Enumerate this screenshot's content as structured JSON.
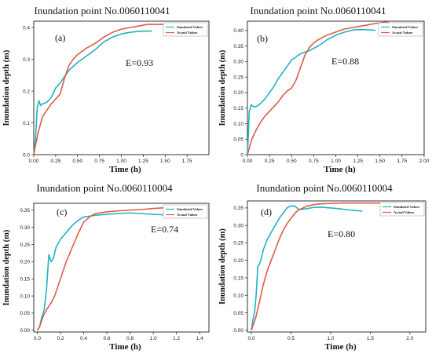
{
  "chart_data": [
    {
      "type": "line",
      "panel_label": "(a)",
      "title": "Inundation point  No.0060110041",
      "xlabel": "Time (h)",
      "ylabel": "Inundation depth (m)",
      "xlim": [
        0,
        2.0
      ],
      "ylim": [
        0,
        0.42
      ],
      "xticks": [
        "0.00",
        "0.25",
        "0.50",
        "0.75",
        "1.00",
        "1.25",
        "1.50",
        "1.75"
      ],
      "xtick_values": [
        0,
        0.25,
        0.5,
        0.75,
        1.0,
        1.25,
        1.5,
        1.75
      ],
      "yticks": [
        "0.0",
        "0.1",
        "0.2",
        "0.3",
        "0.4"
      ],
      "ytick_values": [
        0,
        0.1,
        0.2,
        0.3,
        0.4
      ],
      "annotation": "E=0.93",
      "legend": "top-right",
      "series": [
        {
          "name": "Simulated Values",
          "color": "#1fb3c2",
          "x": [
            0,
            0.02,
            0.04,
            0.05,
            0.06,
            0.07,
            0.08,
            0.1,
            0.15,
            0.2,
            0.25,
            0.3,
            0.35,
            0.4,
            0.5,
            0.6,
            0.7,
            0.8,
            0.9,
            1.0,
            1.1,
            1.2,
            1.3,
            1.35
          ],
          "y": [
            0.0,
            0.05,
            0.15,
            0.16,
            0.17,
            0.16,
            0.155,
            0.16,
            0.165,
            0.18,
            0.21,
            0.225,
            0.245,
            0.265,
            0.29,
            0.31,
            0.33,
            0.355,
            0.37,
            0.38,
            0.385,
            0.388,
            0.389,
            0.389
          ]
        },
        {
          "name": "Actual Values",
          "color": "#e05a4a",
          "x": [
            0,
            0.02,
            0.05,
            0.08,
            0.1,
            0.15,
            0.2,
            0.25,
            0.3,
            0.35,
            0.4,
            0.45,
            0.5,
            0.6,
            0.7,
            0.8,
            0.9,
            1.0,
            1.1,
            1.2,
            1.3,
            1.4,
            1.5
          ],
          "y": [
            0.0,
            0.03,
            0.07,
            0.1,
            0.12,
            0.14,
            0.16,
            0.175,
            0.19,
            0.24,
            0.28,
            0.3,
            0.315,
            0.335,
            0.35,
            0.37,
            0.385,
            0.395,
            0.4,
            0.405,
            0.41,
            0.41,
            0.41
          ]
        }
      ]
    },
    {
      "type": "line",
      "panel_label": "(b)",
      "title": "Inundation point  No.0060110041",
      "xlabel": "Time (h)",
      "ylabel": "Inundation depth (m)",
      "xlim": [
        0,
        2.0
      ],
      "ylim": [
        0,
        0.43
      ],
      "xticks": [
        "0.00",
        "0.25",
        "0.50",
        "0.75",
        "1.00",
        "1.25",
        "1.50",
        "1.75",
        "2.00"
      ],
      "xtick_values": [
        0,
        0.25,
        0.5,
        0.75,
        1.0,
        1.25,
        1.5,
        1.75,
        2.0
      ],
      "yticks": [
        "0",
        "0.05",
        "0.10",
        "0.15",
        "0.20",
        "0.25",
        "0.30",
        "0.35",
        "0.40"
      ],
      "ytick_values": [
        0,
        0.05,
        0.1,
        0.15,
        0.2,
        0.25,
        0.3,
        0.35,
        0.4
      ],
      "annotation": "E=0.88",
      "legend": "top-right",
      "series": [
        {
          "name": "Simulated Values",
          "color": "#1fb3c2",
          "x": [
            0,
            0.01,
            0.02,
            0.03,
            0.04,
            0.05,
            0.06,
            0.08,
            0.1,
            0.15,
            0.2,
            0.25,
            0.3,
            0.35,
            0.4,
            0.45,
            0.5,
            0.55,
            0.6,
            0.7,
            0.8,
            0.9,
            1.0,
            1.1,
            1.2,
            1.3,
            1.4,
            1.45
          ],
          "y": [
            0.0,
            0.06,
            0.14,
            0.145,
            0.16,
            0.16,
            0.155,
            0.155,
            0.155,
            0.165,
            0.18,
            0.2,
            0.22,
            0.245,
            0.265,
            0.285,
            0.305,
            0.315,
            0.325,
            0.335,
            0.35,
            0.37,
            0.385,
            0.395,
            0.402,
            0.403,
            0.402,
            0.4
          ]
        },
        {
          "name": "Actual Values",
          "color": "#e05a4a",
          "x": [
            0,
            0.02,
            0.05,
            0.1,
            0.15,
            0.2,
            0.25,
            0.3,
            0.35,
            0.4,
            0.45,
            0.5,
            0.55,
            0.6,
            0.65,
            0.7,
            0.75,
            0.8,
            0.9,
            1.0,
            1.1,
            1.2,
            1.3,
            1.4,
            1.5,
            1.6
          ],
          "y": [
            0.0,
            0.02,
            0.05,
            0.08,
            0.105,
            0.125,
            0.14,
            0.155,
            0.17,
            0.19,
            0.205,
            0.215,
            0.24,
            0.28,
            0.32,
            0.345,
            0.36,
            0.37,
            0.385,
            0.395,
            0.405,
            0.41,
            0.415,
            0.42,
            0.425,
            0.428
          ]
        }
      ]
    },
    {
      "type": "line",
      "panel_label": "(c)",
      "title": "Inundation point  No.0060110004",
      "xlabel": "Time (h)",
      "ylabel": "Inundation depth (m)",
      "xlim": [
        -0.03,
        1.48
      ],
      "ylim": [
        -0.005,
        0.37
      ],
      "xticks": [
        "0.0",
        "0.2",
        "0.4",
        "0.6",
        "0.8",
        "1.0",
        "1.2",
        "1.4"
      ],
      "xtick_values": [
        0,
        0.2,
        0.4,
        0.6,
        0.8,
        1.0,
        1.2,
        1.4
      ],
      "yticks": [
        "0.00",
        "0.05",
        "0.10",
        "0.15",
        "0.20",
        "0.25",
        "0.30",
        "0.35"
      ],
      "ytick_values": [
        0,
        0.05,
        0.1,
        0.15,
        0.2,
        0.25,
        0.3,
        0.35
      ],
      "annotation": "E=0.74",
      "legend": "top-right",
      "series": [
        {
          "name": "Simulated Values",
          "color": "#1fb3c2",
          "x": [
            0,
            0.02,
            0.04,
            0.06,
            0.08,
            0.1,
            0.12,
            0.14,
            0.16,
            0.2,
            0.25,
            0.3,
            0.35,
            0.4,
            0.5,
            0.6,
            0.7,
            0.8,
            0.9,
            1.0,
            1.1,
            1.2
          ],
          "y": [
            0.0,
            0.01,
            0.04,
            0.06,
            0.12,
            0.22,
            0.2,
            0.21,
            0.24,
            0.265,
            0.285,
            0.305,
            0.32,
            0.33,
            0.335,
            0.338,
            0.34,
            0.342,
            0.34,
            0.338,
            0.336,
            0.332
          ]
        },
        {
          "name": "Actual Values",
          "color": "#e05a4a",
          "x": [
            0,
            0.02,
            0.05,
            0.08,
            0.1,
            0.12,
            0.15,
            0.2,
            0.25,
            0.3,
            0.35,
            0.4,
            0.45,
            0.5,
            0.6,
            0.7,
            0.8,
            0.9,
            1.0,
            1.1,
            1.2
          ],
          "y": [
            0.0,
            0.01,
            0.04,
            0.06,
            0.07,
            0.08,
            0.1,
            0.15,
            0.2,
            0.24,
            0.28,
            0.315,
            0.33,
            0.34,
            0.345,
            0.348,
            0.35,
            0.352,
            0.355,
            0.357,
            0.358
          ]
        }
      ]
    },
    {
      "type": "line",
      "panel_label": "(d)",
      "title": "Inundation point  No.0060110004",
      "xlabel": "Time (h)",
      "ylabel": "Inundation depth (m)",
      "xlim": [
        -0.05,
        2.2
      ],
      "ylim": [
        -0.005,
        0.37
      ],
      "xticks": [
        "0.0",
        "0.5",
        "1.0",
        "1.5",
        "2.0"
      ],
      "xtick_values": [
        0,
        0.5,
        1.0,
        1.5,
        2.0
      ],
      "yticks": [
        "0.00",
        "0.05",
        "0.10",
        "0.15",
        "0.20",
        "0.25",
        "0.30",
        "0.35"
      ],
      "ytick_values": [
        0,
        0.05,
        0.1,
        0.15,
        0.2,
        0.25,
        0.3,
        0.35
      ],
      "annotation": "E=0.80",
      "legend": "top-right",
      "series": [
        {
          "name": "Simulated Values",
          "color": "#1fb3c2",
          "x": [
            0,
            0.02,
            0.04,
            0.06,
            0.08,
            0.1,
            0.12,
            0.15,
            0.2,
            0.25,
            0.3,
            0.35,
            0.4,
            0.45,
            0.5,
            0.55,
            0.6,
            0.7,
            0.8,
            0.9,
            1.0,
            1.1,
            1.2,
            1.3,
            1.4
          ],
          "y": [
            0.0,
            0.03,
            0.05,
            0.1,
            0.18,
            0.19,
            0.2,
            0.23,
            0.26,
            0.28,
            0.3,
            0.32,
            0.335,
            0.35,
            0.356,
            0.355,
            0.345,
            0.348,
            0.352,
            0.352,
            0.35,
            0.348,
            0.345,
            0.343,
            0.341
          ]
        },
        {
          "name": "Actual Values",
          "color": "#e05a4a",
          "x": [
            0,
            0.03,
            0.06,
            0.1,
            0.15,
            0.2,
            0.25,
            0.3,
            0.35,
            0.4,
            0.45,
            0.5,
            0.55,
            0.6,
            0.7,
            0.8,
            0.9,
            1.0,
            1.2,
            1.4,
            1.6,
            1.8
          ],
          "y": [
            0.0,
            0.02,
            0.04,
            0.08,
            0.13,
            0.17,
            0.2,
            0.23,
            0.26,
            0.285,
            0.305,
            0.32,
            0.335,
            0.345,
            0.355,
            0.36,
            0.362,
            0.363,
            0.364,
            0.364,
            0.364,
            0.364
          ]
        }
      ]
    }
  ]
}
